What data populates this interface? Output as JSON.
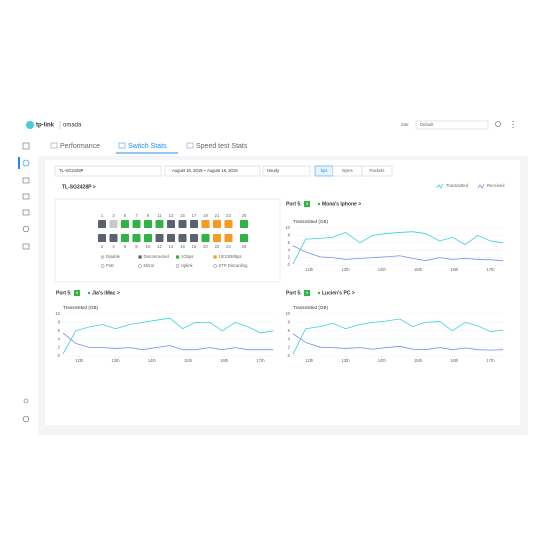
{
  "header": {
    "brand": "tp-link",
    "product": "omada",
    "site_label": "Site:",
    "site_value": "Default"
  },
  "tabs": [
    "Performance",
    "Switch Stats",
    "Speed test Stats"
  ],
  "active_tab": 1,
  "filters": {
    "device": "TL-SG2428P",
    "date_range": "August 16, 2019 ~ August 18, 2019",
    "interval": "Hourly",
    "units": [
      "bps",
      "Bytes",
      "Packets"
    ],
    "selected_unit": 0
  },
  "legend": [
    {
      "label": "Transmitted",
      "color": "#3ccfe0"
    },
    {
      "label": "Received",
      "color": "#7b8cf2"
    }
  ],
  "device_link": "TL-SG2428P >",
  "switch": {
    "top_ports": [
      "1",
      "3",
      "5",
      "7",
      "9",
      "11",
      "13",
      "15",
      "17",
      "19",
      "21",
      "23",
      "25"
    ],
    "bottom_ports": [
      "2",
      "4",
      "6",
      "8",
      "10",
      "12",
      "14",
      "16",
      "18",
      "20",
      "22",
      "24",
      "26"
    ],
    "legend": [
      "Disable",
      "Disconnected",
      "1Gbps",
      "10/100Mbps",
      "PoE",
      "Mirror",
      "Uplink",
      "STP Discarding"
    ]
  },
  "port_charts": [
    {
      "port_label": "Port 5:",
      "port_badge": "5",
      "client": "Mona's Iphone >",
      "y_label": "Transmitted (GB)",
      "x": [
        11.55,
        11.9,
        12.3,
        12.65,
        13.0,
        13.4,
        13.75,
        14.1,
        14.5,
        14.85,
        15.2,
        15.6,
        15.95,
        16.3,
        16.65,
        17.0,
        17.35
      ],
      "xlim": [
        11.55,
        17.4
      ],
      "ylim": [
        0,
        10
      ],
      "yticks": [
        0,
        2,
        4,
        6,
        8,
        10
      ],
      "xticks": [
        {
          "value": 12,
          "label": "12th"
        },
        {
          "value": 13,
          "label": "13th"
        },
        {
          "value": 14,
          "label": "14th"
        },
        {
          "value": 15,
          "label": "15th"
        },
        {
          "value": 16,
          "label": "16th"
        },
        {
          "value": 17,
          "label": "17th"
        }
      ],
      "series": [
        {
          "color": "#3ccfe0",
          "values": [
            0.3,
            7,
            7.2,
            7.5,
            8.8,
            6,
            8,
            8.5,
            8.8,
            9,
            8.5,
            6.5,
            7.5,
            5.5,
            8,
            6.5,
            6
          ]
        },
        {
          "color": "#7b8cf2",
          "values": [
            5.2,
            3.5,
            2.2,
            2,
            1.5,
            1.8,
            2,
            2.2,
            2.5,
            1.8,
            1.2,
            2,
            1.5,
            1.8,
            1.5,
            1.4,
            1.2
          ]
        }
      ]
    },
    {
      "port_label": "Port 5:",
      "port_badge": "5",
      "client": "Jia's iMac >",
      "y_label": "Transmitted (GB)",
      "x": [
        11.55,
        11.9,
        12.3,
        12.65,
        13.0,
        13.4,
        13.75,
        14.1,
        14.5,
        14.85,
        15.2,
        15.6,
        15.95,
        16.3,
        16.65,
        17.0,
        17.35
      ],
      "xlim": [
        11.55,
        17.4
      ],
      "ylim": [
        0,
        10
      ],
      "yticks": [
        0,
        2,
        4,
        6,
        8,
        10
      ],
      "xticks": [
        {
          "value": 12,
          "label": "12th"
        },
        {
          "value": 13,
          "label": "13th"
        },
        {
          "value": 14,
          "label": "14th"
        },
        {
          "value": 15,
          "label": "15th"
        },
        {
          "value": 16,
          "label": "16th"
        },
        {
          "value": 17,
          "label": "17th"
        }
      ],
      "series": [
        {
          "color": "#3ccfe0",
          "values": [
            0.5,
            6,
            7,
            7.5,
            6.5,
            7.5,
            8,
            8.5,
            9,
            6.5,
            8,
            8,
            6,
            8,
            7,
            5.5,
            6
          ]
        },
        {
          "color": "#7b8cf2",
          "values": [
            5.5,
            3,
            2,
            2,
            1.8,
            2,
            1.5,
            2,
            2.5,
            1.5,
            1.5,
            2,
            1.5,
            2,
            1.5,
            1.5,
            1.5
          ]
        }
      ]
    },
    {
      "port_label": "Port 5:",
      "port_badge": "5",
      "client": "Lucien's PC >",
      "y_label": "Transmitted (GB)",
      "x": [
        11.55,
        11.9,
        12.3,
        12.65,
        13.0,
        13.4,
        13.75,
        14.1,
        14.5,
        14.85,
        15.2,
        15.6,
        15.95,
        16.3,
        16.65,
        17.0,
        17.35
      ],
      "xlim": [
        11.55,
        17.4
      ],
      "ylim": [
        0,
        10
      ],
      "yticks": [
        0,
        2,
        4,
        6,
        8,
        10
      ],
      "xticks": [
        {
          "value": 12,
          "label": "12th"
        },
        {
          "value": 13,
          "label": "13th"
        },
        {
          "value": 14,
          "label": "14th"
        },
        {
          "value": 15,
          "label": "15th"
        },
        {
          "value": 16,
          "label": "16th"
        },
        {
          "value": 17,
          "label": "17th"
        }
      ],
      "series": [
        {
          "color": "#3ccfe0",
          "values": [
            0.4,
            6.5,
            7,
            7.8,
            6.5,
            7.5,
            8,
            8.3,
            8.8,
            7,
            8,
            8.2,
            6,
            8,
            7.2,
            5.8,
            6.2
          ]
        },
        {
          "color": "#7b8cf2",
          "values": [
            5.3,
            3.2,
            2.1,
            2,
            1.8,
            2,
            1.6,
            2,
            2.3,
            1.6,
            1.5,
            2,
            1.5,
            1.9,
            1.5,
            1.4,
            1.5
          ]
        }
      ]
    }
  ]
}
